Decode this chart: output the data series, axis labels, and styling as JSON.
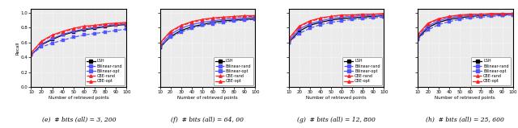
{
  "x": [
    10,
    20,
    30,
    40,
    50,
    60,
    70,
    80,
    90,
    100
  ],
  "panels": [
    {
      "caption": "(e)  # bits (all) = 3, 200",
      "LSH": [
        0.43,
        0.57,
        0.64,
        0.7,
        0.74,
        0.77,
        0.79,
        0.81,
        0.83,
        0.84
      ],
      "Bilinear-rand": [
        0.44,
        0.54,
        0.59,
        0.63,
        0.67,
        0.7,
        0.72,
        0.74,
        0.76,
        0.78
      ],
      "Bilinear-opt": [
        0.43,
        0.58,
        0.65,
        0.71,
        0.75,
        0.78,
        0.8,
        0.82,
        0.84,
        0.85
      ],
      "CBE-rand": [
        0.46,
        0.61,
        0.69,
        0.74,
        0.78,
        0.8,
        0.82,
        0.84,
        0.85,
        0.86
      ],
      "CBE-opt": [
        0.46,
        0.62,
        0.7,
        0.75,
        0.79,
        0.82,
        0.83,
        0.85,
        0.86,
        0.87
      ]
    },
    {
      "caption": "(f)  # bits (all) = 64, 00",
      "LSH": [
        0.53,
        0.68,
        0.76,
        0.81,
        0.84,
        0.87,
        0.89,
        0.9,
        0.91,
        0.92
      ],
      "Bilinear-rand": [
        0.54,
        0.67,
        0.74,
        0.79,
        0.83,
        0.85,
        0.87,
        0.89,
        0.9,
        0.91
      ],
      "Bilinear-opt": [
        0.55,
        0.71,
        0.79,
        0.84,
        0.87,
        0.89,
        0.91,
        0.92,
        0.93,
        0.94
      ],
      "CBE-rand": [
        0.58,
        0.74,
        0.82,
        0.87,
        0.9,
        0.92,
        0.93,
        0.94,
        0.95,
        0.95
      ],
      "CBE-opt": [
        0.59,
        0.75,
        0.83,
        0.88,
        0.91,
        0.93,
        0.94,
        0.95,
        0.96,
        0.96
      ]
    },
    {
      "caption": "(g)  # bits (all) = 12, 800",
      "LSH": [
        0.6,
        0.75,
        0.83,
        0.87,
        0.9,
        0.92,
        0.93,
        0.94,
        0.95,
        0.96
      ],
      "Bilinear-rand": [
        0.6,
        0.72,
        0.79,
        0.84,
        0.87,
        0.89,
        0.91,
        0.92,
        0.93,
        0.94
      ],
      "Bilinear-opt": [
        0.62,
        0.78,
        0.85,
        0.89,
        0.92,
        0.94,
        0.95,
        0.96,
        0.96,
        0.97
      ],
      "CBE-rand": [
        0.64,
        0.81,
        0.88,
        0.92,
        0.95,
        0.96,
        0.97,
        0.97,
        0.98,
        0.98
      ],
      "CBE-opt": [
        0.65,
        0.82,
        0.89,
        0.93,
        0.95,
        0.97,
        0.97,
        0.98,
        0.98,
        0.99
      ]
    },
    {
      "caption": "(h)  # bits (all) = 25, 600",
      "LSH": [
        0.65,
        0.8,
        0.87,
        0.91,
        0.93,
        0.95,
        0.96,
        0.97,
        0.97,
        0.98
      ],
      "Bilinear-rand": [
        0.64,
        0.77,
        0.84,
        0.88,
        0.91,
        0.93,
        0.94,
        0.95,
        0.96,
        0.97
      ],
      "Bilinear-opt": [
        0.67,
        0.82,
        0.89,
        0.93,
        0.95,
        0.96,
        0.97,
        0.97,
        0.98,
        0.98
      ],
      "CBE-rand": [
        0.69,
        0.85,
        0.91,
        0.95,
        0.96,
        0.97,
        0.98,
        0.98,
        0.99,
        0.99
      ],
      "CBE-opt": [
        0.7,
        0.86,
        0.92,
        0.95,
        0.97,
        0.98,
        0.98,
        0.99,
        0.99,
        0.99
      ]
    }
  ],
  "colors": {
    "LSH": "#000000",
    "Bilinear-rand": "#5555ff",
    "Bilinear-opt": "#5555ff",
    "CBE-rand": "#ff2222",
    "CBE-opt": "#ff2222"
  },
  "styles": {
    "LSH": {
      "linestyle": "-",
      "marker": "s",
      "dashes": []
    },
    "Bilinear-rand": {
      "linestyle": "--",
      "marker": "s",
      "dashes": [
        3,
        2
      ]
    },
    "Bilinear-opt": {
      "linestyle": "-",
      "marker": "s",
      "dashes": []
    },
    "CBE-rand": {
      "linestyle": "--",
      "marker": "^",
      "dashes": [
        3,
        2
      ]
    },
    "CBE-opt": {
      "linestyle": "-",
      "marker": "^",
      "dashes": []
    }
  },
  "legend_labels": [
    "LSH",
    "Bilinear-rand",
    "Bilinear-opt",
    "CBE-rand",
    "CBE-opt"
  ],
  "xlabel": "Number of retrieved points",
  "ylabel": "Recall",
  "yticks": [
    0.0,
    0.2,
    0.4,
    0.6,
    0.8,
    1.0
  ],
  "xticks": [
    10,
    20,
    30,
    40,
    50,
    60,
    70,
    80,
    90,
    100
  ],
  "ylim": [
    0.0,
    1.05
  ],
  "xlim": [
    10,
    100
  ],
  "background": "#ebebeb"
}
